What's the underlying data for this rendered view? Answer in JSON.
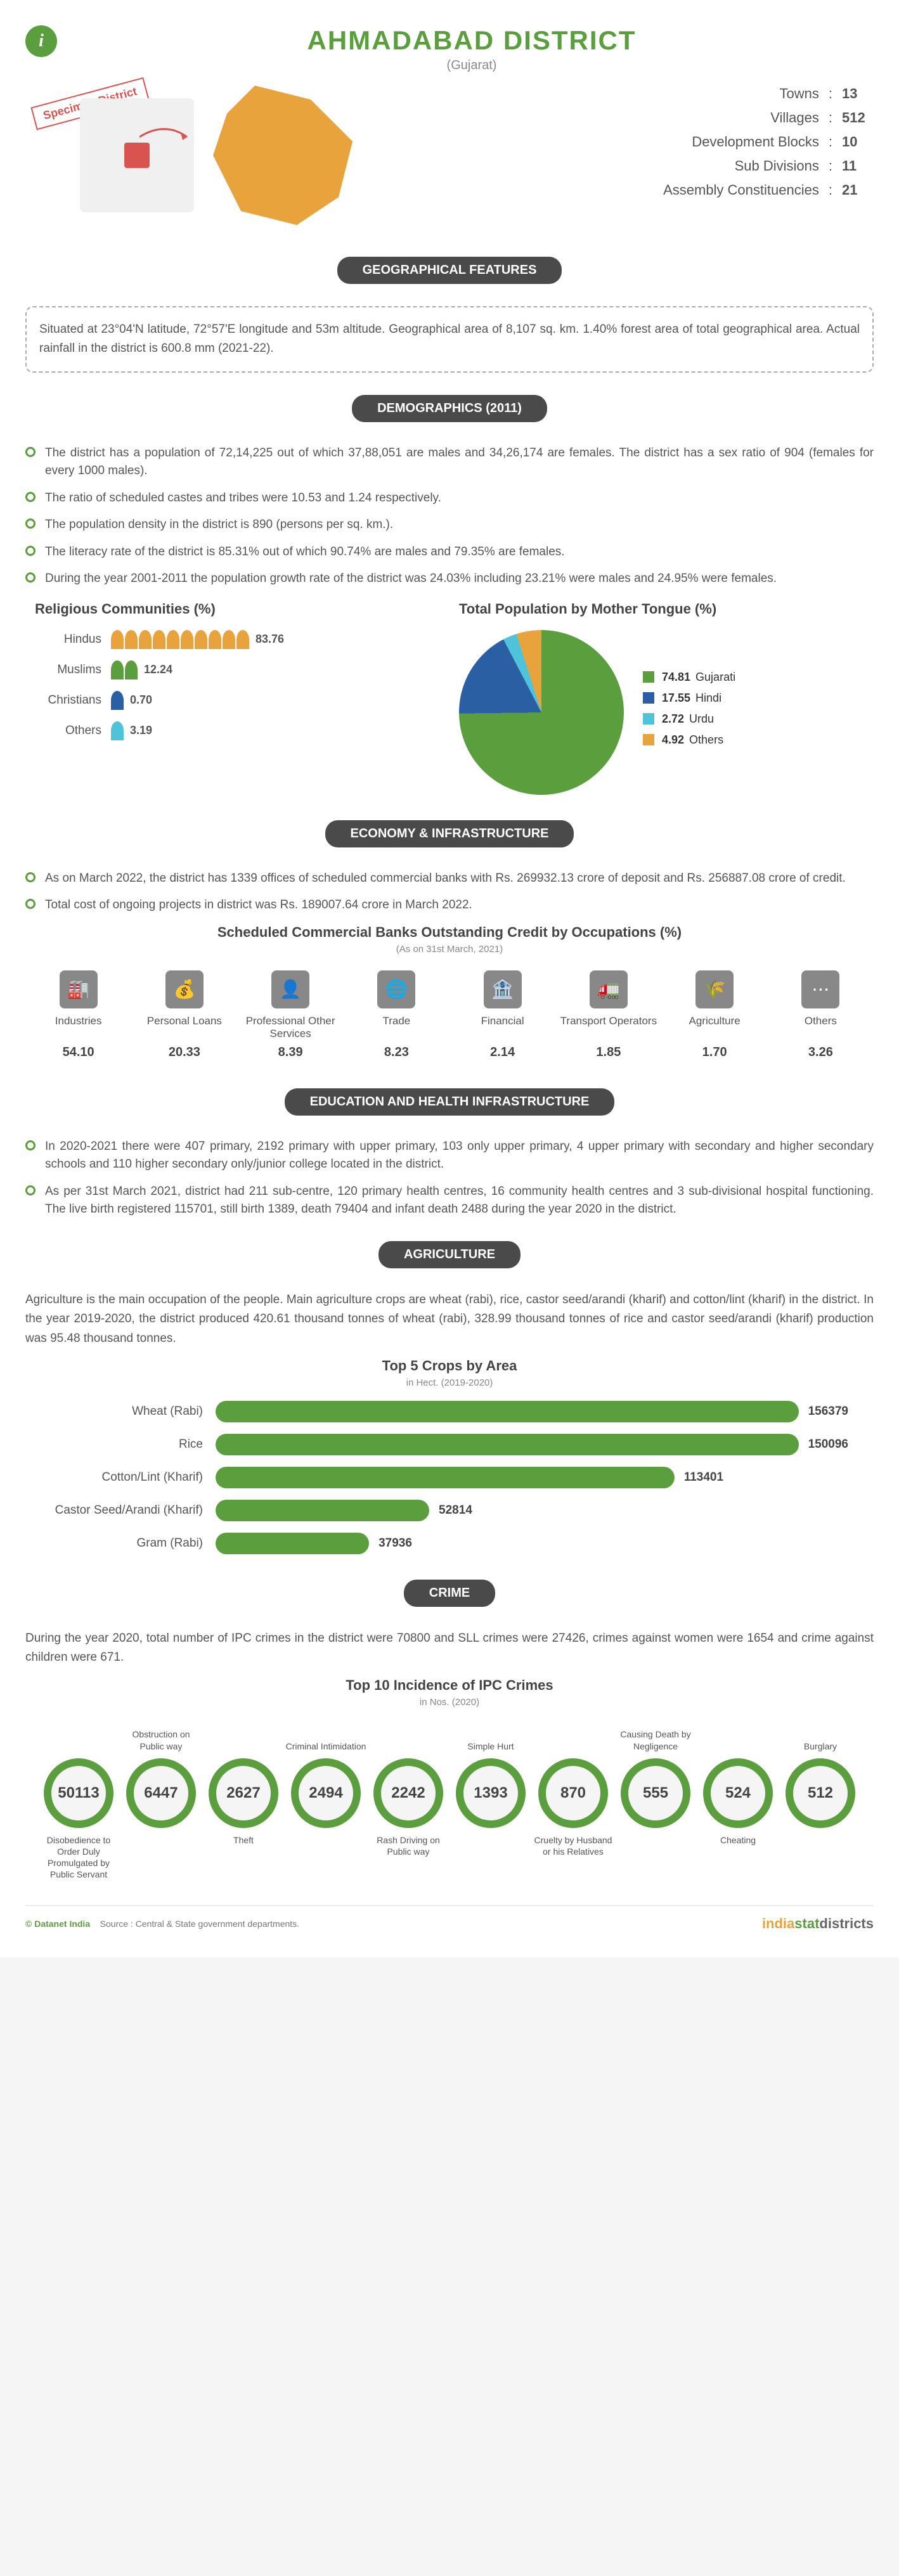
{
  "header": {
    "title": "AHMADABAD DISTRICT",
    "subtitle": "(Gujarat)",
    "specimen": "Specimen District"
  },
  "top_stats": [
    {
      "label": "Towns",
      "value": "13"
    },
    {
      "label": "Villages",
      "value": "512"
    },
    {
      "label": "Development Blocks",
      "value": "10"
    },
    {
      "label": "Sub Divisions",
      "value": "11"
    },
    {
      "label": "Assembly Constituencies",
      "value": "21"
    }
  ],
  "geo": {
    "title": "GEOGRAPHICAL FEATURES",
    "text": "Situated at 23°04'N latitude, 72°57'E longitude and 53m altitude. Geographical area of 8,107 sq. km. 1.40% forest area of total geographical area. Actual rainfall in the district is 600.8 mm (2021-22)."
  },
  "demographics": {
    "title": "DEMOGRAPHICS (2011)",
    "bullets": [
      "The district has a population of 72,14,225 out of which 37,88,051 are males and 34,26,174 are females. The district has a sex ratio of 904 (females for every 1000 males).",
      "The ratio of scheduled castes and tribes were 10.53 and 1.24 respectively.",
      "The population density in the district is 890 (persons per sq. km.).",
      "The literacy rate of the district is 85.31% out of which 90.74% are males and 79.35% are females.",
      "During the year 2001-2011 the population growth rate of the district was 24.03% including 23.21% were males and 24.95% were females."
    ],
    "religion_title": "Religious Communities (%)",
    "religions": [
      {
        "label": "Hindus",
        "value": "83.76",
        "color": "#e8a33d",
        "count": 10
      },
      {
        "label": "Muslims",
        "value": "12.24",
        "color": "#5a9e3e",
        "count": 2
      },
      {
        "label": "Christians",
        "value": "0.70",
        "color": "#2b5fa3",
        "count": 1
      },
      {
        "label": "Others",
        "value": "3.19",
        "color": "#4fc3d9",
        "count": 1
      }
    ],
    "tongue_title": "Total Population by Mother Tongue (%)",
    "tongues": [
      {
        "label": "Gujarati",
        "value": "74.81",
        "color": "#5a9e3e"
      },
      {
        "label": "Hindi",
        "value": "17.55",
        "color": "#2b5fa3"
      },
      {
        "label": "Urdu",
        "value": "2.72",
        "color": "#4fc3d9"
      },
      {
        "label": "Others",
        "value": "4.92",
        "color": "#e8a33d"
      }
    ]
  },
  "economy": {
    "title": "ECONOMY & INFRASTRUCTURE",
    "bullets": [
      "As on March 2022, the district has 1339 offices of scheduled commercial banks with Rs. 269932.13 crore of deposit and Rs. 256887.08 crore of credit.",
      "Total cost of ongoing projects in district was Rs. 189007.64 crore in March 2022."
    ],
    "occ_title": "Scheduled Commercial Banks Outstanding Credit by Occupations (%)",
    "occ_note": "(As on 31st March, 2021)",
    "occupations": [
      {
        "label": "Industries",
        "value": "54.10",
        "icon": "🏭"
      },
      {
        "label": "Personal Loans",
        "value": "20.33",
        "icon": "💰"
      },
      {
        "label": "Professional Other Services",
        "value": "8.39",
        "icon": "👤"
      },
      {
        "label": "Trade",
        "value": "8.23",
        "icon": "🌐"
      },
      {
        "label": "Financial",
        "value": "2.14",
        "icon": "🏦"
      },
      {
        "label": "Transport Operators",
        "value": "1.85",
        "icon": "🚛"
      },
      {
        "label": "Agriculture",
        "value": "1.70",
        "icon": "🌾"
      },
      {
        "label": "Others",
        "value": "3.26",
        "icon": "⋯"
      }
    ]
  },
  "edu_health": {
    "title": "EDUCATION AND HEALTH INFRASTRUCTURE",
    "bullets": [
      "In 2020-2021 there were 407 primary, 2192 primary with upper primary, 103 only upper primary, 4 upper primary with secondary and higher secondary schools and 110 higher secondary only/junior college located in the district.",
      "As per 31st March 2021, district had 211 sub-centre, 120 primary health centres, 16 community health centres and 3 sub-divisional hospital functioning. The live birth registered 115701, still birth 1389, death 79404 and infant death 2488 during the year 2020 in the district."
    ]
  },
  "agriculture": {
    "title": "AGRICULTURE",
    "para": "Agriculture is the main occupation of the people. Main agriculture crops are wheat (rabi), rice, castor seed/arandi (kharif) and cotton/lint (kharif) in the district. In the year 2019-2020, the district produced 420.61 thousand tonnes of wheat (rabi), 328.99 thousand tonnes of rice and castor seed/arandi (kharif) production was 95.48 thousand tonnes.",
    "crop_title": "Top 5 Crops by Area",
    "crop_note": "in Hect. (2019-2020)",
    "max_crop": 156379,
    "crops": [
      {
        "label": "Wheat (Rabi)",
        "value": 156379
      },
      {
        "label": "Rice",
        "value": 150096
      },
      {
        "label": "Cotton/Lint (Kharif)",
        "value": 113401
      },
      {
        "label": "Castor Seed/Arandi (Kharif)",
        "value": 52814
      },
      {
        "label": "Gram (Rabi)",
        "value": 37936
      }
    ]
  },
  "crime": {
    "title": "CRIME",
    "para": "During the year 2020, total number of IPC crimes in the district were 70800 and SLL crimes were 27426, crimes against women were 1654 and crime against children were 671.",
    "ipc_title": "Top 10 Incidence of IPC Crimes",
    "ipc_note": "in Nos. (2020)",
    "crimes": [
      {
        "label": "Disobedience to Order Duly Promulgated by Public Servant",
        "value": "50113",
        "pos": "bottom"
      },
      {
        "label": "Obstruction on Public way",
        "value": "6447",
        "pos": "top"
      },
      {
        "label": "Theft",
        "value": "2627",
        "pos": "bottom"
      },
      {
        "label": "Criminal Intimidation",
        "value": "2494",
        "pos": "top"
      },
      {
        "label": "Rash Driving on Public way",
        "value": "2242",
        "pos": "bottom"
      },
      {
        "label": "Simple Hurt",
        "value": "1393",
        "pos": "top"
      },
      {
        "label": "Cruelty by Husband or his Relatives",
        "value": "870",
        "pos": "bottom"
      },
      {
        "label": "Causing Death by Negligence",
        "value": "555",
        "pos": "top"
      },
      {
        "label": "Cheating",
        "value": "524",
        "pos": "bottom"
      },
      {
        "label": "Burglary",
        "value": "512",
        "pos": "top"
      }
    ]
  },
  "footer": {
    "source": "Source : Central & State government departments.",
    "datanet": "© Datanet India"
  }
}
